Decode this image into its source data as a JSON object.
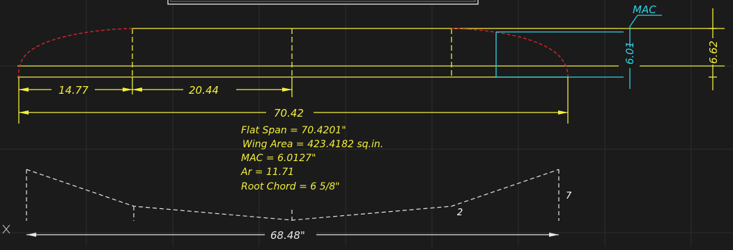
{
  "colors": {
    "background": "#1b1b1b",
    "grid": "#2c2c2c",
    "outline": "#f2ef3e",
    "tip_curve": "#d2232a",
    "mac": "#2fd2e6",
    "profile": "#e6e6e6"
  },
  "dimensions": {
    "tip_segment": "14.77",
    "center_segment": "20.44",
    "flat_span": "70.42",
    "mac_chord": "6.01",
    "root_chord": "6.62",
    "projected_span": "68.48\"",
    "dihedral_left": "7",
    "dihedral_right": "2"
  },
  "labels": {
    "mac": "MAC"
  },
  "notes": [
    "Flat Span = 70.4201\"",
    "Wing Area = 423.4182 sq.in.",
    "MAC = 6.0127\"",
    "Ar = 11.71",
    "Root Chord = 6 5/8\""
  ],
  "icons": {
    "ucs": "ucs-cross-icon"
  }
}
